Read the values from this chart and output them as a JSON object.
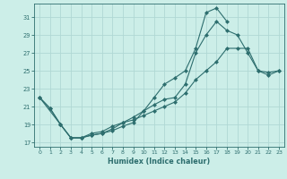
{
  "xlabel": "Humidex (Indice chaleur)",
  "bg_color": "#cceee8",
  "grid_color": "#b0d8d4",
  "line_color": "#2d6e6e",
  "x_values": [
    0,
    1,
    2,
    3,
    4,
    5,
    6,
    7,
    8,
    9,
    10,
    11,
    12,
    13,
    14,
    15,
    16,
    17,
    18,
    19,
    20,
    21,
    22,
    23
  ],
  "series1": [
    22.0,
    20.8,
    19.0,
    17.5,
    17.5,
    17.8,
    18.0,
    18.5,
    19.2,
    19.8,
    20.5,
    21.2,
    21.8,
    22.0,
    23.5,
    27.0,
    29.0,
    30.5,
    29.5,
    29.0,
    27.0,
    25.0,
    24.5,
    25.0
  ],
  "series2": [
    22.0,
    20.8,
    19.0,
    17.5,
    17.5,
    17.8,
    18.0,
    18.3,
    18.8,
    19.2,
    20.5,
    22.0,
    23.5,
    24.2,
    25.0,
    27.5,
    31.5,
    32.0,
    30.5,
    null,
    null,
    null,
    null,
    null
  ],
  "series3": [
    22.0,
    null,
    19.0,
    17.5,
    17.5,
    18.0,
    18.2,
    18.8,
    19.2,
    19.5,
    20.0,
    20.5,
    21.0,
    21.5,
    22.5,
    24.0,
    25.0,
    26.0,
    27.5,
    27.5,
    27.5,
    25.0,
    24.8,
    25.0
  ],
  "yticks": [
    17,
    19,
    21,
    23,
    25,
    27,
    29,
    31
  ],
  "xticks": [
    0,
    1,
    2,
    3,
    4,
    5,
    6,
    7,
    8,
    9,
    10,
    11,
    12,
    13,
    14,
    15,
    16,
    17,
    18,
    19,
    20,
    21,
    22,
    23
  ],
  "ylim": [
    16.5,
    32.5
  ],
  "xlim": [
    -0.5,
    23.5
  ]
}
